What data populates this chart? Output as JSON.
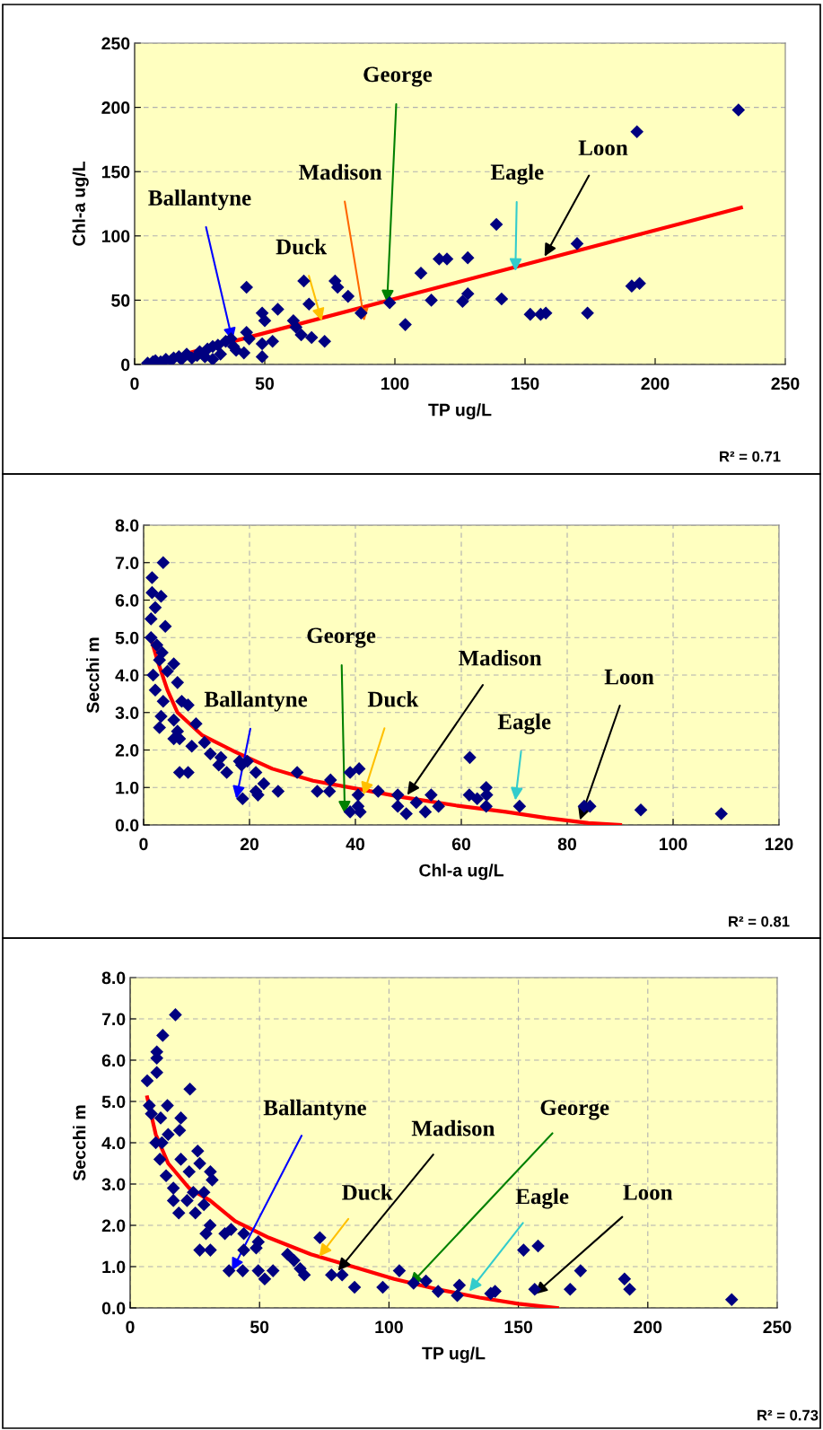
{
  "chart_data": [
    {
      "type": "scatter",
      "xlabel": "TP ug/L",
      "ylabel": "Chl-a ug/L",
      "xlim": [
        0,
        250
      ],
      "ylim": [
        0,
        250
      ],
      "xticks": [
        0,
        50,
        100,
        150,
        200,
        250
      ],
      "yticks": [
        0,
        50,
        100,
        150,
        200,
        250
      ],
      "grid": "y",
      "marker": "diamond",
      "series": [
        {
          "type": "scatter",
          "color": "#000080",
          "x": [
            5,
            7,
            8,
            10,
            12,
            14,
            15,
            17,
            18,
            20,
            22,
            24,
            25,
            27,
            28,
            30,
            30,
            32,
            33,
            35,
            37,
            38,
            39,
            42,
            43,
            43,
            44,
            49,
            49,
            50,
            49,
            53,
            55,
            61,
            62,
            64,
            65,
            67,
            68,
            73,
            77,
            78,
            82,
            87,
            98,
            104,
            110,
            114,
            117,
            120,
            126,
            128,
            128,
            139,
            141,
            152,
            156,
            158,
            170,
            174,
            191,
            193,
            194,
            232
          ],
          "values": [
            1,
            2,
            3,
            2,
            4,
            3,
            5,
            6,
            4,
            8,
            5,
            7,
            10,
            6,
            12,
            14,
            4,
            15,
            8,
            18,
            20,
            14,
            11,
            9,
            60,
            25,
            20,
            40,
            16,
            34,
            6,
            18,
            43,
            34,
            29,
            23,
            65,
            47,
            21,
            18,
            65,
            60,
            53,
            40,
            48,
            31,
            71,
            50,
            82,
            82,
            49,
            55,
            83,
            109,
            51,
            39,
            39,
            40,
            94,
            40,
            61,
            181,
            63,
            198
          ]
        },
        {
          "type": "line",
          "color": "#ff0000",
          "marker": "none",
          "x": [
            6,
            233
          ],
          "values": [
            1,
            122
          ]
        }
      ],
      "annotations": [
        {
          "text": "Ballantyne",
          "x": 37.6,
          "y": 18.6
        },
        {
          "text": "Duck",
          "x": 71.9,
          "y": 33.8
        },
        {
          "text": "Madison",
          "x": 88.3,
          "y": 33.8
        },
        {
          "text": "George",
          "x": 97,
          "y": 48
        },
        {
          "text": "Eagle",
          "x": 146.3,
          "y": 72.6
        },
        {
          "text": "Loon",
          "x": 157.5,
          "y": 84
        },
        "R² = 0.71"
      ]
    },
    {
      "type": "scatter",
      "xlabel": "Chl-a ug/L",
      "ylabel": "Secchi m",
      "xlim": [
        0,
        120
      ],
      "ylim": [
        0,
        8
      ],
      "xticks": [
        0,
        20,
        40,
        60,
        80,
        100,
        120
      ],
      "yticks": [
        {
          "value": 0,
          "label": "0.0"
        },
        {
          "value": 1,
          "label": "1.0"
        },
        {
          "value": 2,
          "label": "2.0"
        },
        {
          "value": 3,
          "label": "3.0"
        },
        {
          "value": 4,
          "label": "4.0"
        },
        {
          "value": 5,
          "label": "5.0"
        },
        {
          "value": 6,
          "label": "6.0"
        },
        {
          "value": 7,
          "label": "7.0"
        },
        {
          "value": 8,
          "label": "8.0"
        }
      ],
      "grid": true,
      "marker": "diamond",
      "series": [
        {
          "type": "scatter",
          "color": "#000080",
          "x": [
            3.7,
            1.6,
            1.6,
            3.3,
            2.2,
            1.4,
            4.1,
            1.4,
            2.5,
            3.5,
            3.0,
            5.7,
            1.8,
            4.5,
            6.4,
            2.2,
            3.7,
            7.2,
            8.4,
            3.3,
            5.7,
            3.0,
            6.4,
            9.9,
            5.7,
            6.8,
            9.1,
            11.5,
            12.6,
            14.6,
            14.2,
            15.7,
            6.8,
            8.4,
            18.1,
            19.6,
            18.5,
            21.2,
            22.7,
            21.2,
            21.6,
            25.4,
            18.7,
            29,
            32.8,
            35.1,
            35.3,
            39,
            40.7,
            40.5,
            40.5,
            39,
            40.9,
            44.3,
            48,
            48,
            49.6,
            51.5,
            53.2,
            54.3,
            55.7,
            61.6,
            61.5,
            63,
            64.7,
            64.8,
            64.7,
            71,
            83.2,
            84.3,
            93.9,
            109.1
          ],
          "values": [
            7.0,
            6.6,
            6.2,
            6.1,
            5.8,
            5.5,
            5.3,
            5.0,
            4.8,
            4.6,
            4.4,
            4.3,
            4.0,
            4.1,
            3.8,
            3.6,
            3.3,
            3.3,
            3.2,
            2.9,
            2.8,
            2.6,
            2.5,
            2.7,
            2.3,
            2.3,
            2.1,
            2.2,
            1.9,
            1.8,
            1.6,
            1.4,
            1.4,
            1.4,
            1.7,
            1.7,
            1.6,
            1.4,
            1.1,
            0.9,
            0.8,
            0.9,
            0.7,
            1.4,
            0.9,
            0.9,
            1.2,
            1.4,
            1.5,
            0.8,
            0.5,
            0.35,
            0.35,
            0.9,
            0.8,
            0.5,
            0.3,
            0.6,
            0.35,
            0.8,
            0.5,
            1.8,
            0.8,
            0.7,
            1.0,
            0.8,
            0.5,
            0.5,
            0.5,
            0.5,
            0.4,
            0.3
          ]
        },
        {
          "type": "line",
          "color": "#ff0000",
          "marker": "none",
          "x": [
            1.4,
            2.6,
            4.5,
            6.4,
            11,
            17.3,
            24.3,
            32,
            40.5,
            49,
            59,
            68.4,
            76,
            84,
            90
          ],
          "values": [
            4.97,
            4.4,
            3.6,
            3.0,
            2.4,
            1.95,
            1.5,
            1.18,
            0.96,
            0.74,
            0.52,
            0.35,
            0.19,
            0.05,
            0
          ]
        }
      ],
      "annotations": [
        {
          "text": "Ballantyne",
          "x": 17.5,
          "y": 0.7
        },
        {
          "text": "George",
          "x": 38,
          "y": 0.3
        },
        {
          "text": "Duck",
          "x": 41.5,
          "y": 0.8
        },
        {
          "text": "Madison",
          "x": 49.8,
          "y": 0.8
        },
        {
          "text": "Eagle",
          "x": 70.2,
          "y": 0.66
        },
        {
          "text": "Loon",
          "x": 82.4,
          "y": 0.13
        },
        "R² = 0.81"
      ]
    },
    {
      "type": "scatter",
      "xlabel": "TP ug/L",
      "ylabel": "Secchi m",
      "xlim": [
        0,
        250
      ],
      "ylim": [
        0,
        8
      ],
      "xticks": [
        0,
        50,
        100,
        150,
        200,
        250
      ],
      "yticks": [
        {
          "value": 0,
          "label": "0.0"
        },
        {
          "value": 1,
          "label": "1.0"
        },
        {
          "value": 2,
          "label": "2.0"
        },
        {
          "value": 3,
          "label": "3.0"
        },
        {
          "value": 4,
          "label": "4.0"
        },
        {
          "value": 5,
          "label": "5.0"
        },
        {
          "value": 6,
          "label": "6.0"
        },
        {
          "value": 7,
          "label": "7.0"
        },
        {
          "value": 8,
          "label": "8.0"
        }
      ],
      "grid": true,
      "marker": "diamond",
      "series": [
        {
          "type": "scatter",
          "color": "#000080",
          "x": [
            17.5,
            12.6,
            10.3,
            10.3,
            10.3,
            6.6,
            23.1,
            7.4,
            14.4,
            8.2,
            11.8,
            19.6,
            14.7,
            19.1,
            9.9,
            12.3,
            26.1,
            11.5,
            19.6,
            26.9,
            31,
            13.9,
            22.8,
            31.7,
            16.7,
            24.4,
            28.5,
            16.7,
            22,
            28.5,
            18.8,
            25.2,
            30.9,
            29.3,
            26.9,
            31,
            36.6,
            39,
            43.9,
            43.9,
            49.5,
            48.7,
            60.8,
            63.3,
            65.7,
            67.3,
            73.3,
            38.2,
            43.5,
            49.5,
            52,
            55.2,
            77.8,
            81.9,
            86.7,
            97.6,
            104,
            109.5,
            114.3,
            119,
            127.2,
            126.4,
            139.3,
            141,
            152,
            157.6,
            156.3,
            170,
            174,
            191,
            193,
            232.4
          ],
          "values": [
            7.1,
            6.6,
            6.2,
            6.05,
            5.7,
            5.5,
            5.3,
            4.9,
            4.9,
            4.7,
            4.6,
            4.6,
            4.2,
            4.3,
            4.0,
            4.0,
            3.8,
            3.6,
            3.6,
            3.5,
            3.3,
            3.2,
            3.3,
            3.1,
            2.9,
            2.8,
            2.8,
            2.6,
            2.6,
            2.5,
            2.3,
            2.3,
            2.0,
            1.8,
            1.4,
            1.4,
            1.8,
            1.9,
            1.8,
            1.4,
            1.6,
            1.45,
            1.3,
            1.15,
            0.95,
            0.8,
            1.7,
            0.9,
            0.9,
            0.9,
            0.7,
            0.9,
            0.8,
            0.8,
            0.5,
            0.5,
            0.9,
            0.6,
            0.65,
            0.4,
            0.55,
            0.3,
            0.35,
            0.4,
            1.4,
            1.5,
            0.45,
            0.45,
            0.9,
            0.7,
            0.45,
            0.2
          ]
        },
        {
          "type": "line",
          "color": "#ff0000",
          "marker": "none",
          "x": [
            6.6,
            9.9,
            14.7,
            22.8,
            30.9,
            40.6,
            53.6,
            69.8,
            86,
            102,
            118,
            135,
            150,
            165
          ],
          "values": [
            5.1,
            4.2,
            3.5,
            2.9,
            2.6,
            2.1,
            1.7,
            1.3,
            1.0,
            0.7,
            0.46,
            0.25,
            0.1,
            0
          ]
        }
      ],
      "annotations": [
        {
          "text": "Ballantyne",
          "x": 39.3,
          "y": 0.9
        },
        {
          "text": "Duck",
          "x": 73,
          "y": 1.24
        },
        {
          "text": "Madison",
          "x": 80.3,
          "y": 0.9
        },
        {
          "text": "George",
          "x": 108,
          "y": 0.55
        },
        {
          "text": "Eagle",
          "x": 131,
          "y": 0.4
        },
        {
          "text": "Loon",
          "x": 156.3,
          "y": 0.33
        },
        "R² = 0.73"
      ]
    }
  ]
}
